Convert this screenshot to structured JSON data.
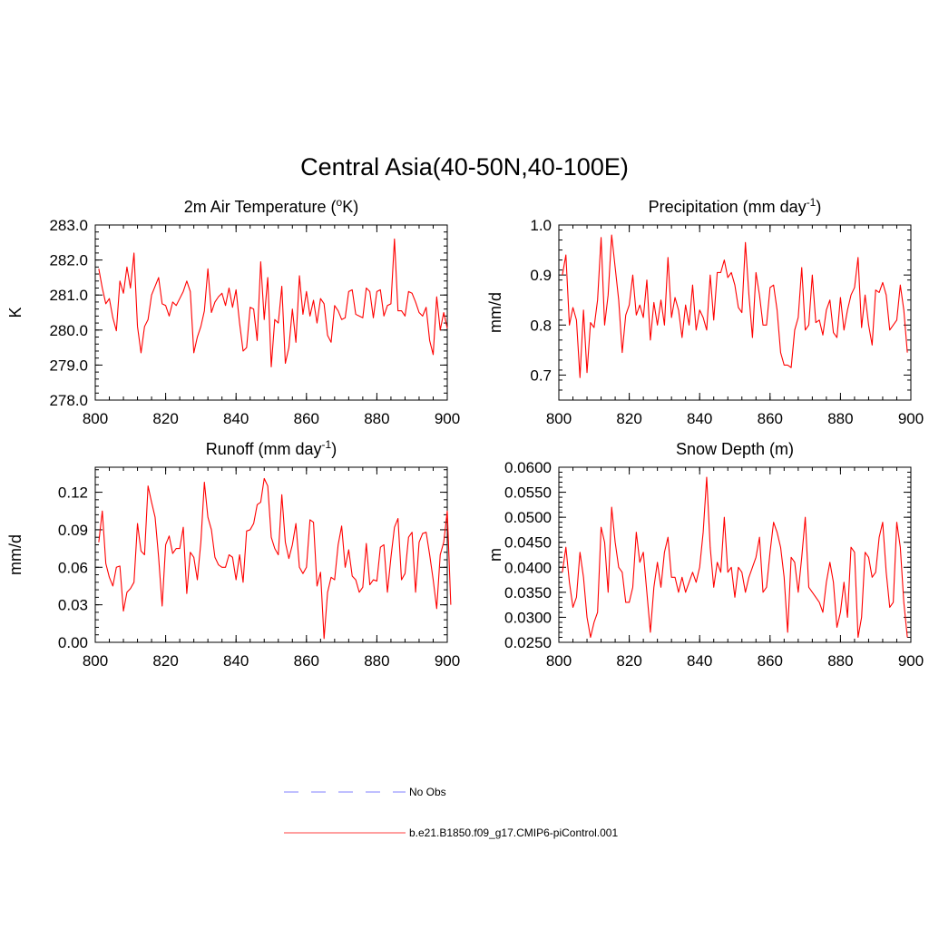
{
  "figure": {
    "title": "Central Asia(40-50N,40-100E)",
    "legend": [
      {
        "label": "No Obs",
        "color": "#9999ff",
        "dash": "dashed"
      },
      {
        "label": "b.e21.B1850.f09_g17.CMIP6-piControl.001",
        "color": "#ff6666",
        "dash": "solid"
      }
    ]
  },
  "chart_data": [
    {
      "type": "line",
      "title": "2m Air Temperature (",
      "title_sup": "o",
      "title_tail": "K)",
      "ylabel": "K",
      "xlabel": "",
      "xlim": [
        800,
        900
      ],
      "ylim": [
        278.0,
        283.0
      ],
      "xticks": [
        800,
        820,
        840,
        860,
        880,
        900
      ],
      "yticks": [
        278.0,
        279.0,
        280.0,
        281.0,
        282.0,
        283.0
      ],
      "ytick_labels": [
        "278.0",
        "279.0",
        "280.0",
        "281.0",
        "282.0",
        "283.0"
      ],
      "series": [
        {
          "name": "b.e21.B1850.f09_g17.CMIP6-piControl.001",
          "color": "#ff0000",
          "x_start": 801,
          "values": [
            281.75,
            281.2,
            280.75,
            280.9,
            280.35,
            279.98,
            281.4,
            281.05,
            281.8,
            281.2,
            282.2,
            280.1,
            279.35,
            280.1,
            280.3,
            281.0,
            281.25,
            281.5,
            280.75,
            280.7,
            280.4,
            280.8,
            280.7,
            280.9,
            281.1,
            281.4,
            281.1,
            279.35,
            279.8,
            280.1,
            280.55,
            281.75,
            280.5,
            280.8,
            280.95,
            281.05,
            280.7,
            281.2,
            280.65,
            281.15,
            280.2,
            279.4,
            279.5,
            280.65,
            280.6,
            279.7,
            281.95,
            280.3,
            281.5,
            278.95,
            280.3,
            280.2,
            281.25,
            279.05,
            279.5,
            280.6,
            279.65,
            281.55,
            280.45,
            281.1,
            280.4,
            280.85,
            280.2,
            280.9,
            280.75,
            279.85,
            279.65,
            280.7,
            280.55,
            280.3,
            280.35,
            281.1,
            281.15,
            280.45,
            280.4,
            280.35,
            281.2,
            281.1,
            280.35,
            281.1,
            281.15,
            280.4,
            280.7,
            280.75,
            282.6,
            280.55,
            280.55,
            280.4,
            281.1,
            281.05,
            280.8,
            280.5,
            280.4,
            280.65,
            279.7,
            279.3,
            280.95,
            280.0,
            280.5,
            280.05
          ]
        }
      ]
    },
    {
      "type": "line",
      "title": "Precipitation (mm day",
      "title_sup": "-1",
      "title_tail": ")",
      "ylabel": "mm/d",
      "xlabel": "",
      "xlim": [
        800,
        900
      ],
      "ylim": [
        0.65,
        1.0
      ],
      "xticks": [
        800,
        820,
        840,
        860,
        880,
        900
      ],
      "yticks": [
        0.7,
        0.8,
        0.9,
        1.0
      ],
      "ytick_labels": [
        "0.7",
        "0.8",
        "0.9",
        "1.0"
      ],
      "series": [
        {
          "name": "b.e21.B1850.f09_g17.CMIP6-piControl.001",
          "color": "#ff0000",
          "x_start": 801,
          "values": [
            0.9,
            0.94,
            0.8,
            0.835,
            0.81,
            0.695,
            0.83,
            0.705,
            0.805,
            0.795,
            0.85,
            0.975,
            0.8,
            0.86,
            0.98,
            0.915,
            0.85,
            0.745,
            0.82,
            0.84,
            0.9,
            0.82,
            0.84,
            0.815,
            0.89,
            0.77,
            0.845,
            0.8,
            0.85,
            0.8,
            0.935,
            0.815,
            0.855,
            0.83,
            0.775,
            0.84,
            0.8,
            0.88,
            0.79,
            0.83,
            0.815,
            0.79,
            0.9,
            0.81,
            0.905,
            0.905,
            0.93,
            0.895,
            0.905,
            0.88,
            0.835,
            0.825,
            0.965,
            0.86,
            0.775,
            0.905,
            0.86,
            0.8,
            0.8,
            0.875,
            0.88,
            0.83,
            0.745,
            0.72,
            0.72,
            0.715,
            0.79,
            0.815,
            0.915,
            0.79,
            0.8,
            0.9,
            0.805,
            0.81,
            0.78,
            0.83,
            0.85,
            0.785,
            0.775,
            0.855,
            0.79,
            0.83,
            0.86,
            0.875,
            0.935,
            0.795,
            0.86,
            0.8,
            0.76,
            0.87,
            0.865,
            0.885,
            0.86,
            0.79,
            0.8,
            0.81,
            0.88,
            0.83,
            0.745
          ]
        }
      ]
    },
    {
      "type": "line",
      "title": "Runoff (mm day",
      "title_sup": "-1",
      "title_tail": ")",
      "ylabel": "mm/d",
      "xlabel": "",
      "xlim": [
        800,
        900
      ],
      "ylim": [
        0.0,
        0.14
      ],
      "xticks": [
        800,
        820,
        840,
        860,
        880,
        900
      ],
      "yticks": [
        0.0,
        0.03,
        0.06,
        0.09,
        0.12
      ],
      "ytick_labels": [
        "0.00",
        "0.03",
        "0.06",
        "0.09",
        "0.12"
      ],
      "series": [
        {
          "name": "b.e21.B1850.f09_g17.CMIP6-piControl.001",
          "color": "#ff0000",
          "x_start": 801,
          "values": [
            0.08,
            0.105,
            0.063,
            0.052,
            0.045,
            0.06,
            0.061,
            0.025,
            0.04,
            0.043,
            0.048,
            0.095,
            0.073,
            0.07,
            0.125,
            0.112,
            0.1,
            0.068,
            0.029,
            0.078,
            0.085,
            0.071,
            0.075,
            0.075,
            0.092,
            0.039,
            0.072,
            0.068,
            0.05,
            0.08,
            0.128,
            0.1,
            0.09,
            0.068,
            0.062,
            0.06,
            0.06,
            0.07,
            0.068,
            0.05,
            0.07,
            0.048,
            0.089,
            0.09,
            0.095,
            0.11,
            0.112,
            0.131,
            0.125,
            0.084,
            0.075,
            0.07,
            0.118,
            0.08,
            0.067,
            0.078,
            0.095,
            0.06,
            0.055,
            0.06,
            0.098,
            0.096,
            0.045,
            0.056,
            0.003,
            0.04,
            0.052,
            0.05,
            0.078,
            0.093,
            0.06,
            0.074,
            0.053,
            0.05,
            0.04,
            0.044,
            0.079,
            0.046,
            0.05,
            0.049,
            0.076,
            0.078,
            0.04,
            0.068,
            0.092,
            0.099,
            0.05,
            0.055,
            0.084,
            0.088,
            0.04,
            0.08,
            0.087,
            0.088,
            0.07,
            0.05,
            0.027,
            0.07,
            0.08,
            0.105,
            0.03
          ]
        }
      ]
    },
    {
      "type": "line",
      "title": "Snow Depth (m)",
      "title_sup": "",
      "title_tail": "",
      "ylabel": "m",
      "xlabel": "",
      "xlim": [
        800,
        900
      ],
      "ylim": [
        0.025,
        0.06
      ],
      "xticks": [
        800,
        820,
        840,
        860,
        880,
        900
      ],
      "yticks": [
        0.025,
        0.03,
        0.035,
        0.04,
        0.045,
        0.05,
        0.055,
        0.06
      ],
      "ytick_labels": [
        "0.0250",
        "0.0300",
        "0.0350",
        "0.0400",
        "0.0450",
        "0.0500",
        "0.0550",
        "0.0600"
      ],
      "series": [
        {
          "name": "b.e21.B1850.f09_g17.CMIP6-piControl.001",
          "color": "#ff0000",
          "x_start": 801,
          "values": [
            0.039,
            0.044,
            0.037,
            0.032,
            0.034,
            0.043,
            0.038,
            0.03,
            0.026,
            0.029,
            0.031,
            0.048,
            0.045,
            0.035,
            0.052,
            0.045,
            0.04,
            0.039,
            0.033,
            0.033,
            0.036,
            0.047,
            0.041,
            0.043,
            0.035,
            0.027,
            0.036,
            0.041,
            0.036,
            0.043,
            0.046,
            0.038,
            0.038,
            0.035,
            0.038,
            0.035,
            0.037,
            0.039,
            0.037,
            0.04,
            0.047,
            0.058,
            0.044,
            0.036,
            0.041,
            0.039,
            0.05,
            0.039,
            0.04,
            0.034,
            0.04,
            0.039,
            0.035,
            0.038,
            0.04,
            0.042,
            0.046,
            0.035,
            0.036,
            0.043,
            0.049,
            0.047,
            0.044,
            0.038,
            0.027,
            0.042,
            0.041,
            0.035,
            0.042,
            0.05,
            0.036,
            0.035,
            0.034,
            0.033,
            0.031,
            0.037,
            0.041,
            0.037,
            0.028,
            0.031,
            0.037,
            0.03,
            0.044,
            0.043,
            0.026,
            0.03,
            0.043,
            0.042,
            0.038,
            0.039,
            0.046,
            0.049,
            0.039,
            0.032,
            0.033,
            0.049,
            0.044,
            0.033,
            0.026
          ]
        }
      ]
    }
  ]
}
